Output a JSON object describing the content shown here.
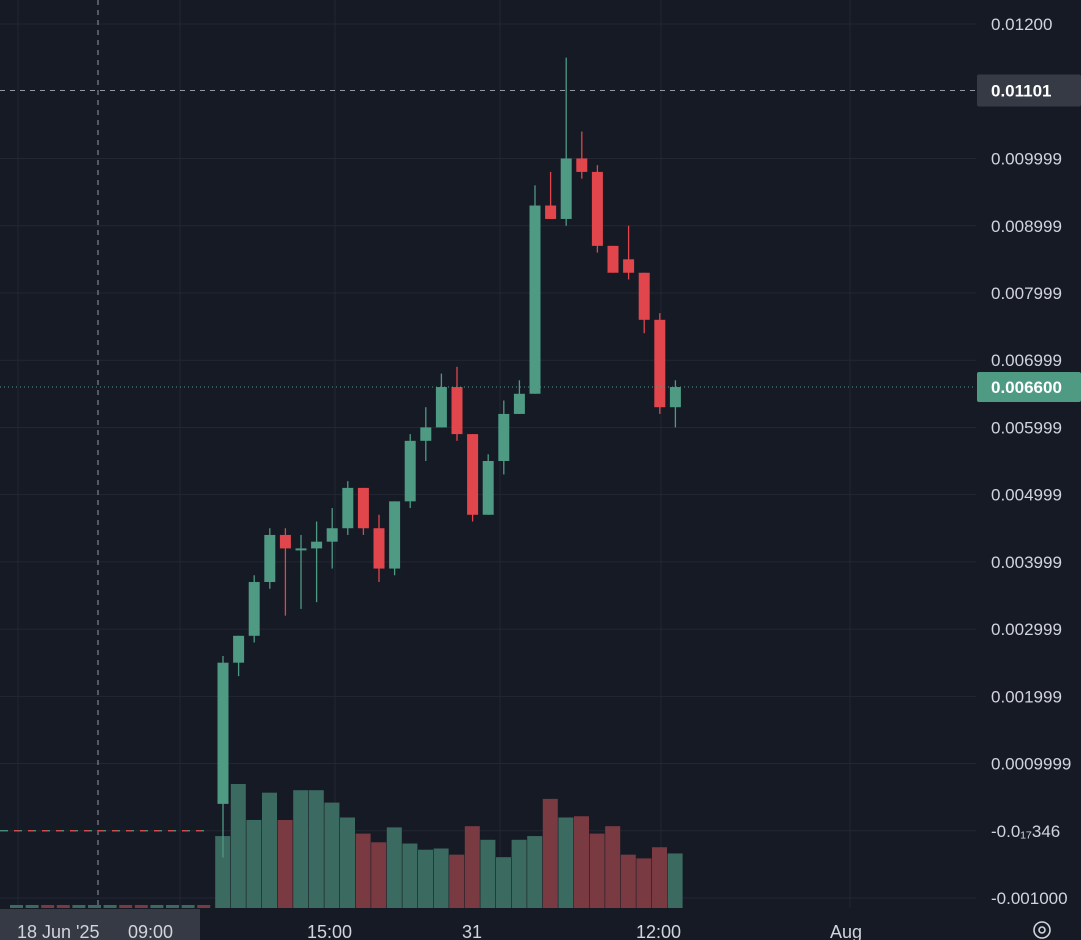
{
  "colors": {
    "background": "#161a25",
    "grid": "#232733",
    "up": "#4e9a83",
    "down": "#e0464c",
    "volume_up": "#3b6a60",
    "volume_down": "#7a3a42",
    "text": "#d1d4dc",
    "crosshair_label_bg": "#363a45",
    "last_price_bg": "#4e9a83"
  },
  "price_axis": {
    "labels": [
      "0.01200",
      "0.009999",
      "0.008999",
      "0.007999",
      "0.006999",
      "0.005999",
      "0.004999",
      "0.003999",
      "0.002999",
      "0.001999",
      "0.0009999",
      "-0.0₁₇346",
      "-0.001000"
    ],
    "label_values": [
      0.012,
      0.009999,
      0.008999,
      0.007999,
      0.006999,
      0.005999,
      0.004999,
      0.003999,
      0.002999,
      0.001999,
      0.0009999,
      -3.46e-17,
      -0.001
    ]
  },
  "time_axis": {
    "crosshair_label": "18 Jun '25",
    "labels": [
      "09:00",
      "15:00",
      "31",
      "12:00",
      "Aug"
    ]
  },
  "crosshair": {
    "price_label": "0.01101",
    "price": 0.01101
  },
  "last_price": {
    "label": "0.006600",
    "price": 0.0066
  },
  "settings_icon": "gear-icon",
  "chart_data": {
    "type": "candlestick",
    "y_range": [
      -0.00105,
      0.01235
    ],
    "grid": true,
    "candles": [
      {
        "o": 0.0004,
        "h": 0.0026,
        "l": -0.0004,
        "c": 0.0025
      },
      {
        "o": 0.0025,
        "h": 0.0029,
        "l": 0.0023,
        "c": 0.0029
      },
      {
        "o": 0.0029,
        "h": 0.0038,
        "l": 0.0028,
        "c": 0.0037
      },
      {
        "o": 0.0037,
        "h": 0.0045,
        "l": 0.0036,
        "c": 0.0044
      },
      {
        "o": 0.0044,
        "h": 0.0045,
        "l": 0.0032,
        "c": 0.0042
      },
      {
        "o": 0.0042,
        "h": 0.0044,
        "l": 0.0033,
        "c": 0.0042
      },
      {
        "o": 0.0042,
        "h": 0.0046,
        "l": 0.0034,
        "c": 0.0043
      },
      {
        "o": 0.0043,
        "h": 0.0048,
        "l": 0.0039,
        "c": 0.0045
      },
      {
        "o": 0.0045,
        "h": 0.0052,
        "l": 0.0044,
        "c": 0.0051
      },
      {
        "o": 0.0051,
        "h": 0.0051,
        "l": 0.0044,
        "c": 0.0045
      },
      {
        "o": 0.0045,
        "h": 0.0047,
        "l": 0.0037,
        "c": 0.0039
      },
      {
        "o": 0.0039,
        "h": 0.0049,
        "l": 0.0038,
        "c": 0.0049
      },
      {
        "o": 0.0049,
        "h": 0.0059,
        "l": 0.0048,
        "c": 0.0058
      },
      {
        "o": 0.0058,
        "h": 0.0063,
        "l": 0.0055,
        "c": 0.006
      },
      {
        "o": 0.006,
        "h": 0.0068,
        "l": 0.006,
        "c": 0.0066
      },
      {
        "o": 0.0066,
        "h": 0.0069,
        "l": 0.0058,
        "c": 0.0059
      },
      {
        "o": 0.0059,
        "h": 0.0059,
        "l": 0.0046,
        "c": 0.0047
      },
      {
        "o": 0.0047,
        "h": 0.0056,
        "l": 0.0047,
        "c": 0.0055
      },
      {
        "o": 0.0055,
        "h": 0.0064,
        "l": 0.0053,
        "c": 0.0062
      },
      {
        "o": 0.0062,
        "h": 0.0067,
        "l": 0.0062,
        "c": 0.0065
      },
      {
        "o": 0.0065,
        "h": 0.0096,
        "l": 0.0065,
        "c": 0.0093
      },
      {
        "o": 0.0093,
        "h": 0.0098,
        "l": 0.0092,
        "c": 0.0091
      },
      {
        "o": 0.0091,
        "h": 0.0115,
        "l": 0.009,
        "c": 0.01
      },
      {
        "o": 0.01,
        "h": 0.0104,
        "l": 0.0097,
        "c": 0.0098
      },
      {
        "o": 0.0098,
        "h": 0.0099,
        "l": 0.0086,
        "c": 0.0087
      },
      {
        "o": 0.0087,
        "h": 0.0087,
        "l": 0.0083,
        "c": 0.0083
      },
      {
        "o": 0.0085,
        "h": 0.009,
        "l": 0.0082,
        "c": 0.0083
      },
      {
        "o": 0.0083,
        "h": 0.0083,
        "l": 0.0074,
        "c": 0.0076
      },
      {
        "o": 0.0076,
        "h": 0.0077,
        "l": 0.0062,
        "c": 0.0063
      },
      {
        "o": 0.0063,
        "h": 0.0067,
        "l": 0.006,
        "c": 0.0066
      }
    ],
    "volume_relative": [
      0.58,
      1.0,
      0.71,
      0.93,
      0.71,
      0.95,
      0.95,
      0.85,
      0.73,
      0.6,
      0.53,
      0.65,
      0.52,
      0.47,
      0.48,
      0.43,
      0.66,
      0.55,
      0.41,
      0.55,
      0.58,
      0.88,
      0.73,
      0.74,
      0.6,
      0.66,
      0.43,
      0.4,
      0.49,
      0.44
    ]
  }
}
